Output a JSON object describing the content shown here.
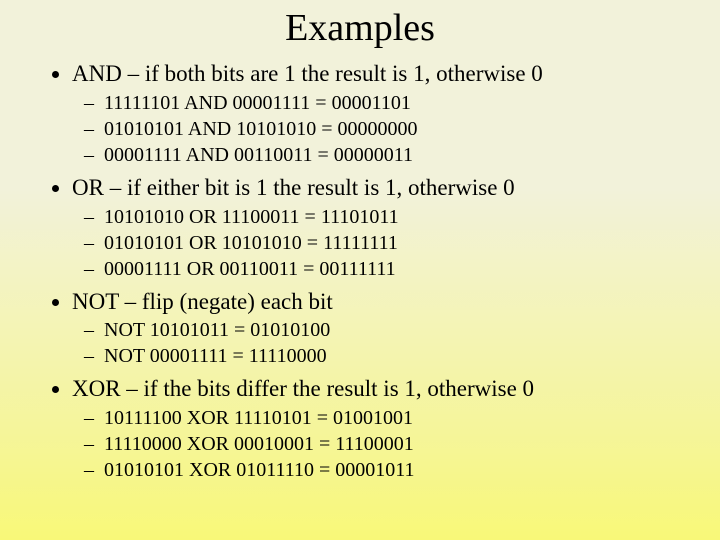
{
  "title": "Examples",
  "sections": [
    {
      "heading": "AND – if both bits are 1 the result is 1, otherwise 0",
      "items": [
        "11111101 AND 00001111 = 00001101",
        "01010101 AND 10101010 = 00000000",
        "00001111 AND 00110011 = 00000011"
      ]
    },
    {
      "heading": "OR – if either bit is 1 the result is 1, otherwise 0",
      "items": [
        "10101010 OR 11100011 = 11101011",
        "01010101 OR 10101010 = 11111111",
        "00001111 OR 00110011 = 00111111"
      ]
    },
    {
      "heading": "NOT – flip (negate) each bit",
      "items": [
        "NOT 10101011 = 01010100",
        "NOT 00001111 = 11110000"
      ]
    },
    {
      "heading": "XOR – if the bits differ the result is 1, otherwise 0",
      "items": [
        "10111100 XOR 11110101 = 01001001",
        "11110000 XOR 00010001 = 11100001",
        "01010101 XOR 01011110 = 00001011"
      ]
    }
  ],
  "colors": {
    "text": "#000000",
    "bg_top": "#f2f2da",
    "bg_bottom": "#f8f878"
  },
  "fonts": {
    "family": "Times New Roman",
    "title_size_pt": 29,
    "bullet_size_pt": 17,
    "subbullet_size_pt": 15
  }
}
